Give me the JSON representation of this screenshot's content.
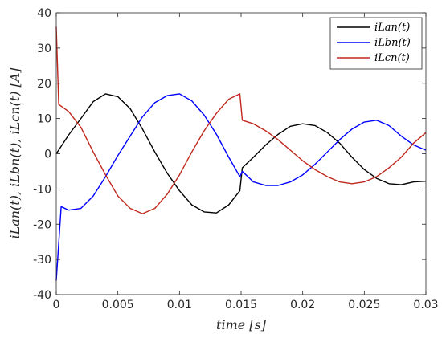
{
  "chart_data": {
    "type": "line",
    "xlabel": "time [s]",
    "ylabel": "iLan(t), iLbn(t), iLcn(t) [A]",
    "xlim": [
      0,
      0.03
    ],
    "ylim": [
      -40,
      40
    ],
    "xticks": [
      0,
      0.005,
      0.01,
      0.015,
      0.02,
      0.025,
      0.03
    ],
    "xtick_labels": [
      "0",
      "0.005",
      "0.01",
      "0.015",
      "0.02",
      "0.025",
      "0.03"
    ],
    "yticks": [
      -40,
      -30,
      -20,
      -10,
      0,
      10,
      20,
      30,
      40
    ],
    "ytick_labels": [
      "-40",
      "-30",
      "-20",
      "-10",
      "0",
      "10",
      "20",
      "30",
      "40"
    ],
    "grid": false,
    "legend_position": "top-right",
    "series": [
      {
        "name": "iLan(t)",
        "color": "#000000",
        "x": [
          0,
          0.001,
          0.002,
          0.003,
          0.004,
          0.005,
          0.006,
          0.007,
          0.008,
          0.009,
          0.01,
          0.011,
          0.012,
          0.013,
          0.014,
          0.0149,
          0.0151,
          0.016,
          0.017,
          0.018,
          0.019,
          0.02,
          0.021,
          0.022,
          0.023,
          0.024,
          0.025,
          0.026,
          0.027,
          0.028,
          0.029,
          0.03
        ],
        "y": [
          0,
          5.3,
          10.0,
          14.8,
          17.0,
          16.2,
          12.8,
          7.0,
          0.5,
          -5.5,
          -10.5,
          -14.5,
          -16.5,
          -16.8,
          -14.5,
          -10.5,
          -4.0,
          -1.0,
          2.5,
          5.5,
          7.8,
          8.5,
          8.0,
          6.0,
          3.0,
          -1.0,
          -4.5,
          -7.0,
          -8.5,
          -8.8,
          -8.0,
          -7.8
        ]
      },
      {
        "name": "iLbn(t)",
        "color": "#0000ff",
        "x": [
          0,
          0.0004,
          0.001,
          0.002,
          0.003,
          0.004,
          0.005,
          0.006,
          0.007,
          0.008,
          0.009,
          0.01,
          0.011,
          0.012,
          0.013,
          0.014,
          0.0149,
          0.0151,
          0.016,
          0.017,
          0.018,
          0.019,
          0.02,
          0.021,
          0.022,
          0.023,
          0.024,
          0.025,
          0.026,
          0.027,
          0.028,
          0.029,
          0.03
        ],
        "y": [
          -36,
          -15,
          -16.0,
          -15.5,
          -12.0,
          -6.5,
          -0.5,
          5.0,
          10.5,
          14.5,
          16.5,
          17.0,
          15.0,
          11.0,
          5.5,
          -1.0,
          -6.5,
          -5.0,
          -8.0,
          -9.0,
          -9.0,
          -8.0,
          -6.0,
          -3.0,
          0.5,
          4.0,
          7.0,
          9.0,
          9.5,
          8.0,
          5.0,
          2.5,
          1.0
        ]
      },
      {
        "name": "iLcn(t)",
        "color": "#c0281e",
        "x": [
          0,
          0.0002,
          0.0006,
          0.001,
          0.002,
          0.003,
          0.004,
          0.005,
          0.006,
          0.007,
          0.008,
          0.009,
          0.01,
          0.011,
          0.012,
          0.013,
          0.014,
          0.0149,
          0.0151,
          0.016,
          0.017,
          0.018,
          0.019,
          0.02,
          0.021,
          0.022,
          0.023,
          0.024,
          0.025,
          0.026,
          0.027,
          0.028,
          0.029,
          0.03
        ],
        "y": [
          36,
          14,
          13.0,
          12.0,
          7.5,
          0.5,
          -6.0,
          -12.0,
          -15.5,
          -17.0,
          -15.5,
          -11.5,
          -6.0,
          0.5,
          6.5,
          11.5,
          15.5,
          17.0,
          9.5,
          8.5,
          6.5,
          4.0,
          1.0,
          -2.0,
          -4.5,
          -6.5,
          -8.0,
          -8.5,
          -8.0,
          -6.5,
          -4.0,
          -1.0,
          3.0,
          6.0
        ]
      }
    ]
  }
}
